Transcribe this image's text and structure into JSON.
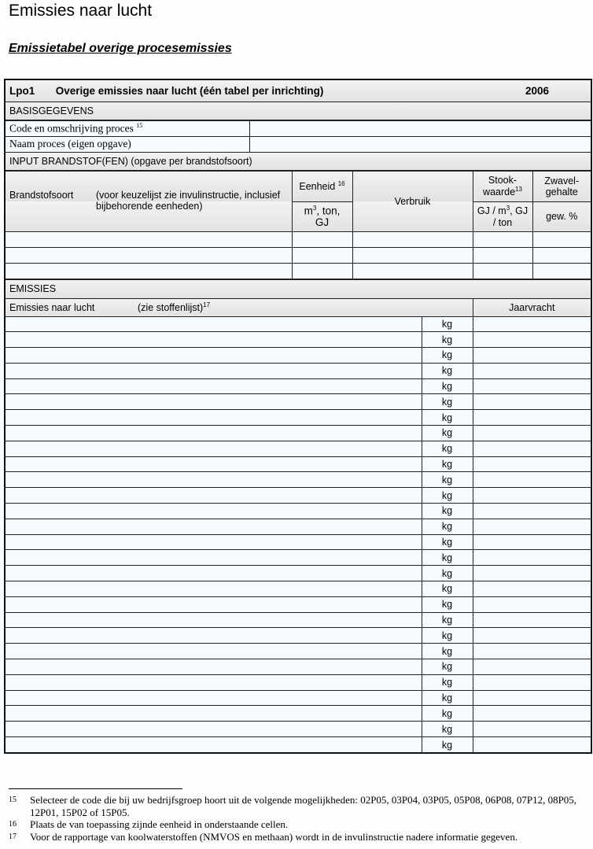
{
  "page": {
    "title": "Emissies naar lucht",
    "subtitle": "Emissietabel overige procesemissies"
  },
  "form": {
    "code": "Lpo1",
    "heading": "Overige emissies naar lucht (één tabel per inrichting)",
    "year": "2006",
    "basis": {
      "label": "BASISGEGEVENS",
      "code_label": "Code en omschrijving proces",
      "code_ref": "15",
      "naam_label": "Naam proces (eigen opgave)"
    },
    "input": {
      "label": "INPUT BRANDSTOF(FEN) (opgave per brandstofsoort)",
      "brandstofsoort": "Brandstofsoort",
      "brandstof_note": "(voor keuzelijst zie invulinstructie, inclusief bijbehorende eenheden)",
      "eenheid": "Eenheid",
      "eenheid_ref": "16",
      "eenheid_unit_pre": "m",
      "eenheid_unit_sup": "3",
      "eenheid_unit_post": ", ton, GJ",
      "verbruik": "Verbruik",
      "stook": "Stook- waarde",
      "stook_ref": "13",
      "stook_unit_pre": "GJ / m",
      "stook_unit_sup": "3",
      "stook_unit_post": ", GJ / ton",
      "zwavel": "Zwavel- gehalte",
      "zwavel_unit": "gew. %",
      "rows": 3
    },
    "emissies": {
      "label": "EMISSIES",
      "col_label": "Emissies naar lucht",
      "col_note": "(zie stoffenlijst)",
      "col_ref": "17",
      "jaarvracht": "Jaarvracht",
      "rows": [
        "kg",
        "kg",
        "kg",
        "kg",
        "kg",
        "kg",
        "kg",
        "kg",
        "kg",
        "kg",
        "kg",
        "kg",
        "kg",
        "kg",
        "kg",
        "kg",
        "kg",
        "kg",
        "kg",
        "kg",
        "kg",
        "kg",
        "kg",
        "kg",
        "kg",
        "kg",
        "kg",
        "kg"
      ]
    }
  },
  "footnotes": [
    {
      "num": "15",
      "text": "Selecteer de code die bij uw bedrijfsgroep hoort uit de volgende mogelijkheden: 02P05, 03P04, 03P05, 05P08, 06P08, 07P12, 08P05, 12P01, 15P02 of 15P05."
    },
    {
      "num": "16",
      "text": "Plaats de van toepassing zijnde eenheid in onderstaande cellen."
    },
    {
      "num": "17",
      "text": "Voor de rapportage van koolwaterstoffen (NMVOS en methaan) wordt in de invulinstructie nadere informatie gegeven."
    }
  ]
}
